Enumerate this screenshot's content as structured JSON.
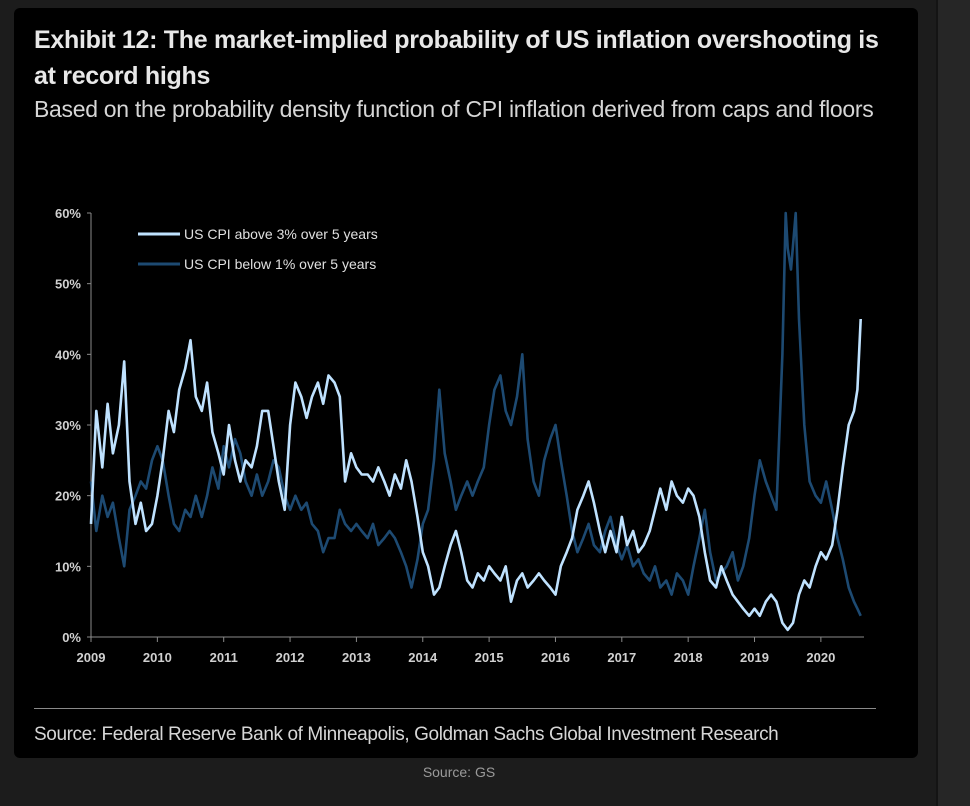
{
  "header": {
    "title": "Exhibit 12: The market-implied probability of US inflation overshooting is at record highs",
    "subtitle": "Based on the probability density function of CPI inflation derived from caps and floors"
  },
  "footer": {
    "source": "Source: Federal Reserve Bank of Minneapolis, Goldman Sachs Global Investment Research",
    "caption": "Source: GS"
  },
  "colors": {
    "above": "#bfe2ff",
    "below": "#1d4a72",
    "axis": "#8a8a8a",
    "text": "#d0d0d0"
  },
  "chart_data": {
    "type": "line",
    "title": "",
    "xlabel": "",
    "ylabel": "",
    "xlim": [
      2009,
      2020.65
    ],
    "ylim": [
      0,
      60
    ],
    "x_ticks": [
      "2009",
      "2010",
      "2011",
      "2012",
      "2013",
      "2014",
      "2015",
      "2016",
      "2017",
      "2018",
      "2019",
      "2020"
    ],
    "y_ticks": [
      "0%",
      "10%",
      "20%",
      "30%",
      "40%",
      "50%",
      "60%"
    ],
    "legend_position": "top-left",
    "grid": false,
    "series": [
      {
        "name": "US CPI above 3% over 5 years",
        "color": "#bfe2ff",
        "points": [
          [
            2009.0,
            16
          ],
          [
            2009.08,
            32
          ],
          [
            2009.17,
            24
          ],
          [
            2009.25,
            33
          ],
          [
            2009.33,
            26
          ],
          [
            2009.42,
            30
          ],
          [
            2009.5,
            39
          ],
          [
            2009.58,
            22
          ],
          [
            2009.67,
            16
          ],
          [
            2009.75,
            19
          ],
          [
            2009.83,
            15
          ],
          [
            2009.92,
            16
          ],
          [
            2010.0,
            20
          ],
          [
            2010.08,
            25
          ],
          [
            2010.17,
            32
          ],
          [
            2010.25,
            29
          ],
          [
            2010.33,
            35
          ],
          [
            2010.42,
            38
          ],
          [
            2010.5,
            42
          ],
          [
            2010.58,
            34
          ],
          [
            2010.67,
            32
          ],
          [
            2010.75,
            36
          ],
          [
            2010.83,
            29
          ],
          [
            2010.92,
            26
          ],
          [
            2011.0,
            23
          ],
          [
            2011.08,
            30
          ],
          [
            2011.17,
            25
          ],
          [
            2011.25,
            22
          ],
          [
            2011.33,
            25
          ],
          [
            2011.42,
            24
          ],
          [
            2011.5,
            27
          ],
          [
            2011.58,
            32
          ],
          [
            2011.67,
            32
          ],
          [
            2011.75,
            27
          ],
          [
            2011.83,
            22
          ],
          [
            2011.92,
            18
          ],
          [
            2012.0,
            30
          ],
          [
            2012.08,
            36
          ],
          [
            2012.17,
            34
          ],
          [
            2012.25,
            31
          ],
          [
            2012.33,
            34
          ],
          [
            2012.42,
            36
          ],
          [
            2012.5,
            33
          ],
          [
            2012.58,
            37
          ],
          [
            2012.67,
            36
          ],
          [
            2012.75,
            34
          ],
          [
            2012.83,
            22
          ],
          [
            2012.92,
            26
          ],
          [
            2013.0,
            24
          ],
          [
            2013.08,
            23
          ],
          [
            2013.17,
            23
          ],
          [
            2013.25,
            22
          ],
          [
            2013.33,
            24
          ],
          [
            2013.42,
            22
          ],
          [
            2013.5,
            20
          ],
          [
            2013.58,
            23
          ],
          [
            2013.67,
            21
          ],
          [
            2013.75,
            25
          ],
          [
            2013.83,
            22
          ],
          [
            2013.92,
            17
          ],
          [
            2014.0,
            12
          ],
          [
            2014.08,
            10
          ],
          [
            2014.17,
            6
          ],
          [
            2014.25,
            7
          ],
          [
            2014.33,
            10
          ],
          [
            2014.42,
            13
          ],
          [
            2014.5,
            15
          ],
          [
            2014.58,
            12
          ],
          [
            2014.67,
            8
          ],
          [
            2014.75,
            7
          ],
          [
            2014.83,
            9
          ],
          [
            2014.92,
            8
          ],
          [
            2015.0,
            10
          ],
          [
            2015.08,
            9
          ],
          [
            2015.17,
            8
          ],
          [
            2015.25,
            10
          ],
          [
            2015.33,
            5
          ],
          [
            2015.42,
            8
          ],
          [
            2015.5,
            9
          ],
          [
            2015.58,
            7
          ],
          [
            2015.67,
            8
          ],
          [
            2015.75,
            9
          ],
          [
            2015.83,
            8
          ],
          [
            2015.92,
            7
          ],
          [
            2016.0,
            6
          ],
          [
            2016.08,
            10
          ],
          [
            2016.17,
            12
          ],
          [
            2016.25,
            14
          ],
          [
            2016.33,
            18
          ],
          [
            2016.42,
            20
          ],
          [
            2016.5,
            22
          ],
          [
            2016.58,
            19
          ],
          [
            2016.67,
            15
          ],
          [
            2016.75,
            12
          ],
          [
            2016.83,
            15
          ],
          [
            2016.92,
            12
          ],
          [
            2017.0,
            17
          ],
          [
            2017.08,
            13
          ],
          [
            2017.17,
            15
          ],
          [
            2017.25,
            12
          ],
          [
            2017.33,
            13
          ],
          [
            2017.42,
            15
          ],
          [
            2017.5,
            18
          ],
          [
            2017.58,
            21
          ],
          [
            2017.67,
            18
          ],
          [
            2017.75,
            22
          ],
          [
            2017.83,
            20
          ],
          [
            2017.92,
            19
          ],
          [
            2018.0,
            21
          ],
          [
            2018.08,
            20
          ],
          [
            2018.17,
            17
          ],
          [
            2018.25,
            12
          ],
          [
            2018.33,
            8
          ],
          [
            2018.42,
            7
          ],
          [
            2018.5,
            10
          ],
          [
            2018.58,
            8
          ],
          [
            2018.67,
            6
          ],
          [
            2018.75,
            5
          ],
          [
            2018.83,
            4
          ],
          [
            2018.92,
            3
          ],
          [
            2019.0,
            4
          ],
          [
            2019.08,
            3
          ],
          [
            2019.17,
            5
          ],
          [
            2019.25,
            6
          ],
          [
            2019.33,
            5
          ],
          [
            2019.42,
            2
          ],
          [
            2019.5,
            1
          ],
          [
            2019.58,
            2
          ],
          [
            2019.67,
            6
          ],
          [
            2019.75,
            8
          ],
          [
            2019.83,
            7
          ],
          [
            2019.92,
            10
          ],
          [
            2020.0,
            12
          ],
          [
            2020.08,
            11
          ],
          [
            2020.17,
            13
          ],
          [
            2020.25,
            18
          ],
          [
            2020.33,
            24
          ],
          [
            2020.42,
            30
          ],
          [
            2020.5,
            32
          ],
          [
            2020.55,
            35
          ],
          [
            2020.6,
            45
          ]
        ]
      },
      {
        "name": "US CPI below 1% over 5 years",
        "color": "#1d4a72",
        "points": [
          [
            2009.0,
            22
          ],
          [
            2009.08,
            15
          ],
          [
            2009.17,
            20
          ],
          [
            2009.25,
            17
          ],
          [
            2009.33,
            19
          ],
          [
            2009.42,
            14
          ],
          [
            2009.5,
            10
          ],
          [
            2009.58,
            18
          ],
          [
            2009.67,
            20
          ],
          [
            2009.75,
            22
          ],
          [
            2009.83,
            21
          ],
          [
            2009.92,
            25
          ],
          [
            2010.0,
            27
          ],
          [
            2010.08,
            25
          ],
          [
            2010.17,
            20
          ],
          [
            2010.25,
            16
          ],
          [
            2010.33,
            15
          ],
          [
            2010.42,
            18
          ],
          [
            2010.5,
            17
          ],
          [
            2010.58,
            20
          ],
          [
            2010.67,
            17
          ],
          [
            2010.75,
            20
          ],
          [
            2010.83,
            24
          ],
          [
            2010.92,
            21
          ],
          [
            2011.0,
            27
          ],
          [
            2011.08,
            24
          ],
          [
            2011.17,
            28
          ],
          [
            2011.25,
            26
          ],
          [
            2011.33,
            22
          ],
          [
            2011.42,
            20
          ],
          [
            2011.5,
            23
          ],
          [
            2011.58,
            20
          ],
          [
            2011.67,
            22
          ],
          [
            2011.75,
            25
          ],
          [
            2011.83,
            24
          ],
          [
            2011.92,
            20
          ],
          [
            2012.0,
            18
          ],
          [
            2012.08,
            20
          ],
          [
            2012.17,
            18
          ],
          [
            2012.25,
            19
          ],
          [
            2012.33,
            16
          ],
          [
            2012.42,
            15
          ],
          [
            2012.5,
            12
          ],
          [
            2012.58,
            14
          ],
          [
            2012.67,
            14
          ],
          [
            2012.75,
            18
          ],
          [
            2012.83,
            16
          ],
          [
            2012.92,
            15
          ],
          [
            2013.0,
            16
          ],
          [
            2013.08,
            15
          ],
          [
            2013.17,
            14
          ],
          [
            2013.25,
            16
          ],
          [
            2013.33,
            13
          ],
          [
            2013.42,
            14
          ],
          [
            2013.5,
            15
          ],
          [
            2013.58,
            14
          ],
          [
            2013.67,
            12
          ],
          [
            2013.75,
            10
          ],
          [
            2013.83,
            7
          ],
          [
            2013.92,
            11
          ],
          [
            2014.0,
            16
          ],
          [
            2014.08,
            18
          ],
          [
            2014.17,
            25
          ],
          [
            2014.25,
            35
          ],
          [
            2014.33,
            26
          ],
          [
            2014.42,
            22
          ],
          [
            2014.5,
            18
          ],
          [
            2014.58,
            20
          ],
          [
            2014.67,
            22
          ],
          [
            2014.75,
            20
          ],
          [
            2014.83,
            22
          ],
          [
            2014.92,
            24
          ],
          [
            2015.0,
            30
          ],
          [
            2015.08,
            35
          ],
          [
            2015.17,
            37
          ],
          [
            2015.25,
            32
          ],
          [
            2015.33,
            30
          ],
          [
            2015.42,
            34
          ],
          [
            2015.5,
            40
          ],
          [
            2015.58,
            28
          ],
          [
            2015.67,
            22
          ],
          [
            2015.75,
            20
          ],
          [
            2015.83,
            25
          ],
          [
            2015.92,
            28
          ],
          [
            2016.0,
            30
          ],
          [
            2016.08,
            25
          ],
          [
            2016.17,
            20
          ],
          [
            2016.25,
            15
          ],
          [
            2016.33,
            12
          ],
          [
            2016.42,
            14
          ],
          [
            2016.5,
            16
          ],
          [
            2016.58,
            13
          ],
          [
            2016.67,
            12
          ],
          [
            2016.75,
            15
          ],
          [
            2016.83,
            17
          ],
          [
            2016.92,
            13
          ],
          [
            2017.0,
            11
          ],
          [
            2017.08,
            13
          ],
          [
            2017.17,
            10
          ],
          [
            2017.25,
            11
          ],
          [
            2017.33,
            9
          ],
          [
            2017.42,
            8
          ],
          [
            2017.5,
            10
          ],
          [
            2017.58,
            7
          ],
          [
            2017.67,
            8
          ],
          [
            2017.75,
            6
          ],
          [
            2017.83,
            9
          ],
          [
            2017.92,
            8
          ],
          [
            2018.0,
            6
          ],
          [
            2018.08,
            10
          ],
          [
            2018.17,
            14
          ],
          [
            2018.25,
            18
          ],
          [
            2018.33,
            12
          ],
          [
            2018.42,
            8
          ],
          [
            2018.5,
            9
          ],
          [
            2018.58,
            10
          ],
          [
            2018.67,
            12
          ],
          [
            2018.75,
            8
          ],
          [
            2018.83,
            10
          ],
          [
            2018.92,
            14
          ],
          [
            2019.0,
            20
          ],
          [
            2019.08,
            25
          ],
          [
            2019.17,
            22
          ],
          [
            2019.25,
            20
          ],
          [
            2019.33,
            18
          ],
          [
            2019.42,
            40
          ],
          [
            2019.47,
            60
          ],
          [
            2019.5,
            55
          ],
          [
            2019.55,
            52
          ],
          [
            2019.62,
            60
          ],
          [
            2019.67,
            45
          ],
          [
            2019.75,
            30
          ],
          [
            2019.83,
            22
          ],
          [
            2019.92,
            20
          ],
          [
            2020.0,
            19
          ],
          [
            2020.08,
            22
          ],
          [
            2020.17,
            18
          ],
          [
            2020.25,
            14
          ],
          [
            2020.33,
            11
          ],
          [
            2020.42,
            7
          ],
          [
            2020.5,
            5
          ],
          [
            2020.55,
            4
          ],
          [
            2020.6,
            3
          ]
        ]
      }
    ]
  }
}
